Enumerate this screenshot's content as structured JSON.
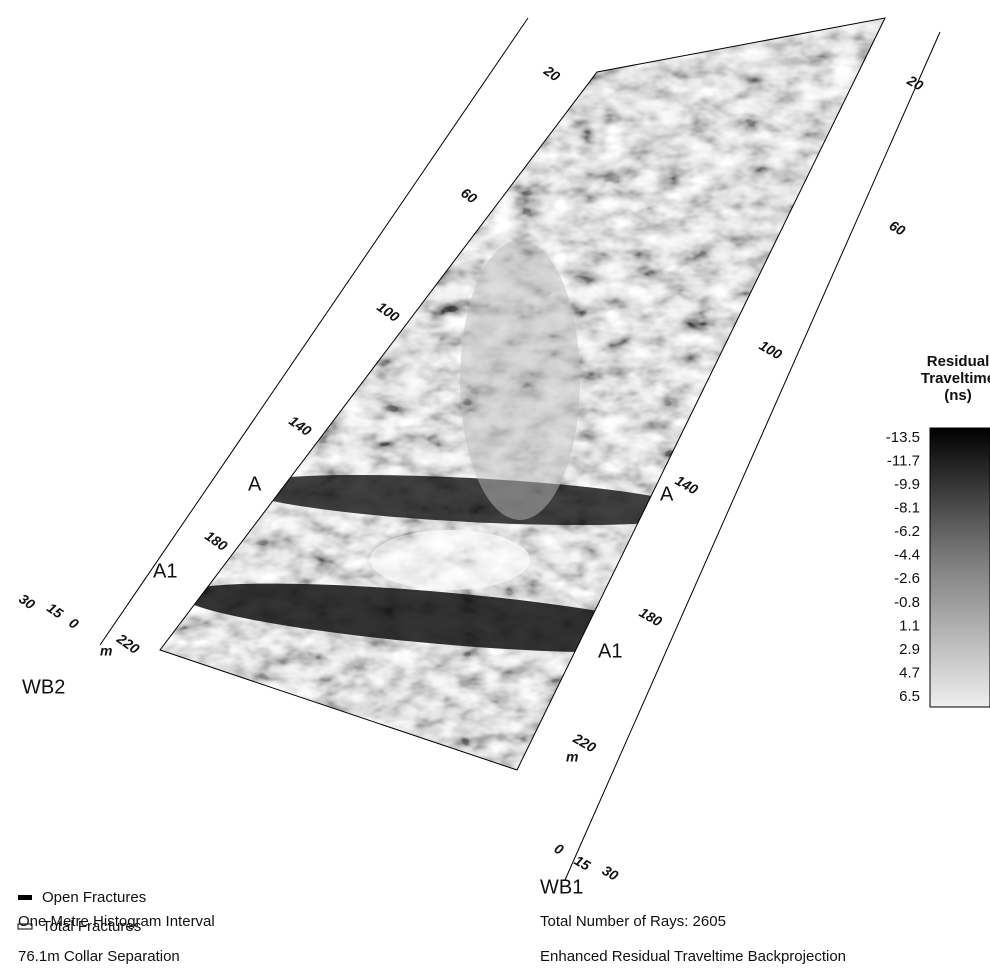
{
  "wb2": {
    "label": "WB2",
    "depth_ticks": [
      20,
      60,
      100,
      140,
      180,
      220
    ],
    "unit": "m",
    "scale_ticks": [
      30,
      15,
      0
    ]
  },
  "wb1": {
    "label": "WB1",
    "depth_ticks": [
      20,
      60,
      100,
      140,
      180,
      220
    ],
    "unit": "m",
    "scale_ticks": [
      0,
      15,
      30
    ]
  },
  "zones": [
    "A",
    "A1"
  ],
  "colorbar": {
    "title": [
      "Residual",
      "Traveltime",
      "(ns)"
    ],
    "ticks": [
      -13.5,
      -11.7,
      -9.9,
      -8.1,
      -6.2,
      -4.4,
      -2.6,
      -0.8,
      1.1,
      2.9,
      4.7,
      6.5
    ]
  },
  "legend": [
    "Open Fractures",
    "Total Fractures"
  ],
  "notes_left": [
    "One Metre Histogram Interval",
    "76.1m Collar Separation"
  ],
  "notes_right": [
    "Total Number of Rays: 2605",
    "Enhanced Residual Traveltime Backprojection"
  ]
}
